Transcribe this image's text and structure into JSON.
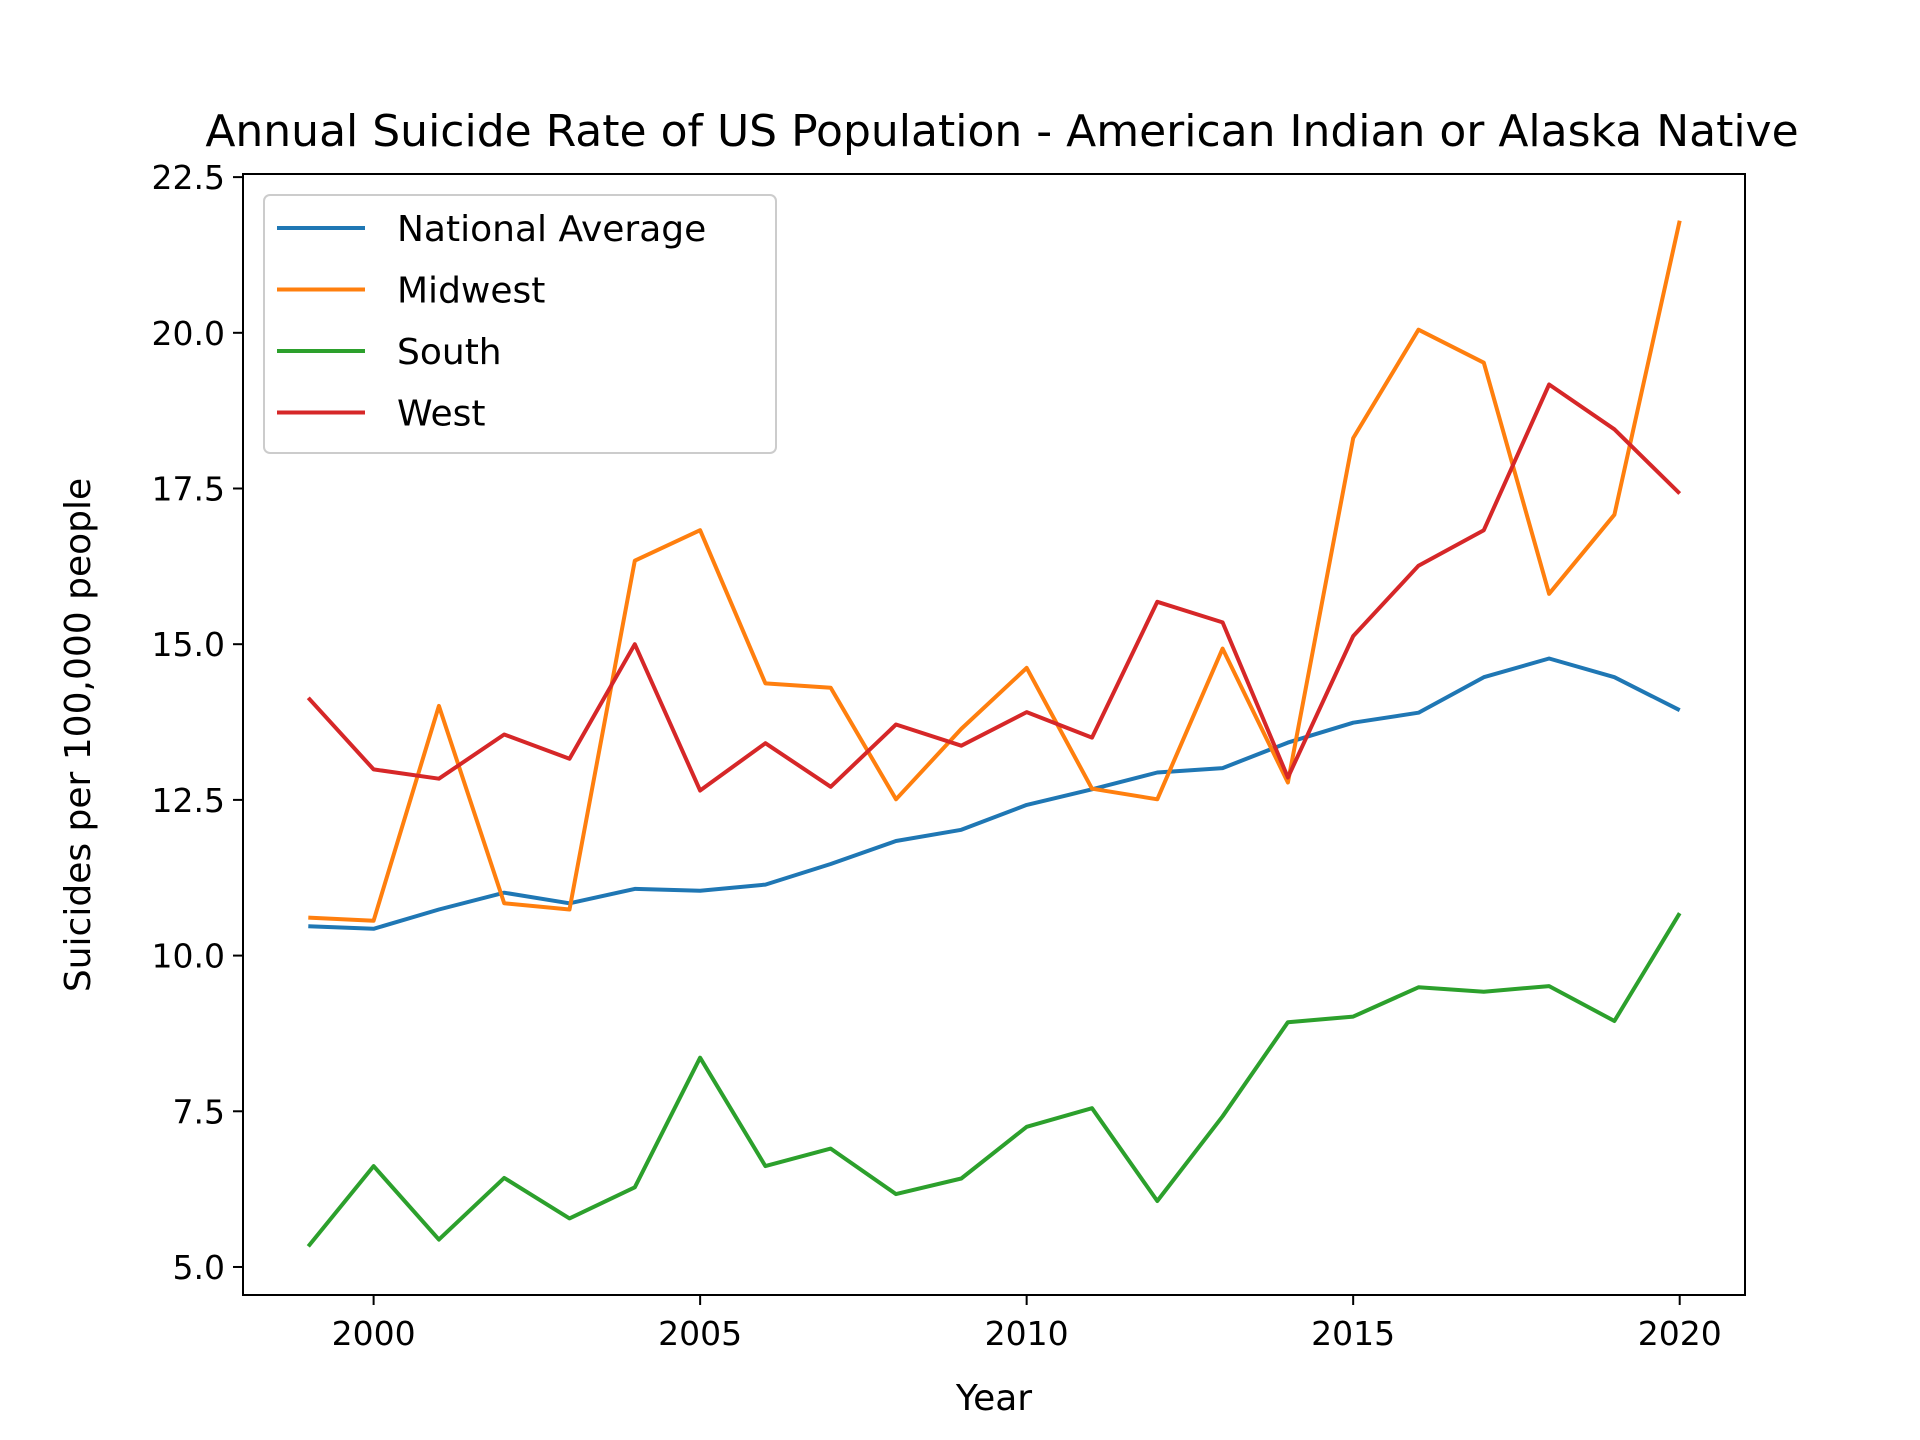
{
  "chart_data": {
    "type": "line",
    "title": "Annual Suicide Rate of US Population - American Indian or Alaska Native",
    "xlabel": "Year",
    "ylabel": "Suicides per 100,000 people",
    "xlim": [
      1998,
      2021
    ],
    "ylim": [
      4.55,
      22.55
    ],
    "xticks": [
      2000,
      2005,
      2010,
      2015,
      2020
    ],
    "xtick_labels": [
      "2000",
      "2005",
      "2010",
      "2015",
      "2020"
    ],
    "yticks": [
      5.0,
      7.5,
      10.0,
      12.5,
      15.0,
      17.5,
      20.0,
      22.5
    ],
    "ytick_labels": [
      "5.0",
      "7.5",
      "10.0",
      "12.5",
      "15.0",
      "17.5",
      "20.0",
      "22.5"
    ],
    "legend_position": "top-left",
    "grid": false,
    "x": [
      1999,
      2000,
      2001,
      2002,
      2003,
      2004,
      2005,
      2006,
      2007,
      2008,
      2009,
      2010,
      2011,
      2012,
      2013,
      2014,
      2015,
      2016,
      2017,
      2018,
      2019,
      2020
    ],
    "series": [
      {
        "name": "National Average",
        "color": "#1f77b4",
        "values": [
          10.47,
          10.43,
          10.74,
          11.01,
          10.84,
          11.07,
          11.04,
          11.14,
          11.47,
          11.84,
          12.02,
          12.42,
          12.67,
          12.94,
          13.01,
          13.42,
          13.74,
          13.9,
          14.47,
          14.77,
          14.47,
          13.94
        ]
      },
      {
        "name": "Midwest",
        "color": "#ff7f0e",
        "values": [
          10.61,
          10.56,
          14.01,
          10.84,
          10.74,
          16.34,
          16.83,
          14.37,
          14.3,
          12.51,
          13.64,
          14.62,
          12.68,
          12.51,
          14.93,
          12.78,
          18.31,
          20.05,
          19.52,
          15.81,
          17.08,
          21.8
        ]
      },
      {
        "name": "South",
        "color": "#2ca02c",
        "values": [
          5.33,
          6.62,
          5.44,
          6.43,
          5.78,
          6.28,
          8.36,
          6.62,
          6.9,
          6.17,
          6.42,
          7.25,
          7.55,
          6.06,
          7.42,
          8.93,
          9.02,
          9.49,
          9.42,
          9.51,
          8.95,
          10.68
        ]
      },
      {
        "name": "West",
        "color": "#d62728",
        "values": [
          14.14,
          12.99,
          12.84,
          13.55,
          13.16,
          15.0,
          12.65,
          13.41,
          12.71,
          13.71,
          13.37,
          13.91,
          13.5,
          15.68,
          15.35,
          12.86,
          15.13,
          16.26,
          16.83,
          19.17,
          18.45,
          17.42
        ]
      }
    ]
  }
}
